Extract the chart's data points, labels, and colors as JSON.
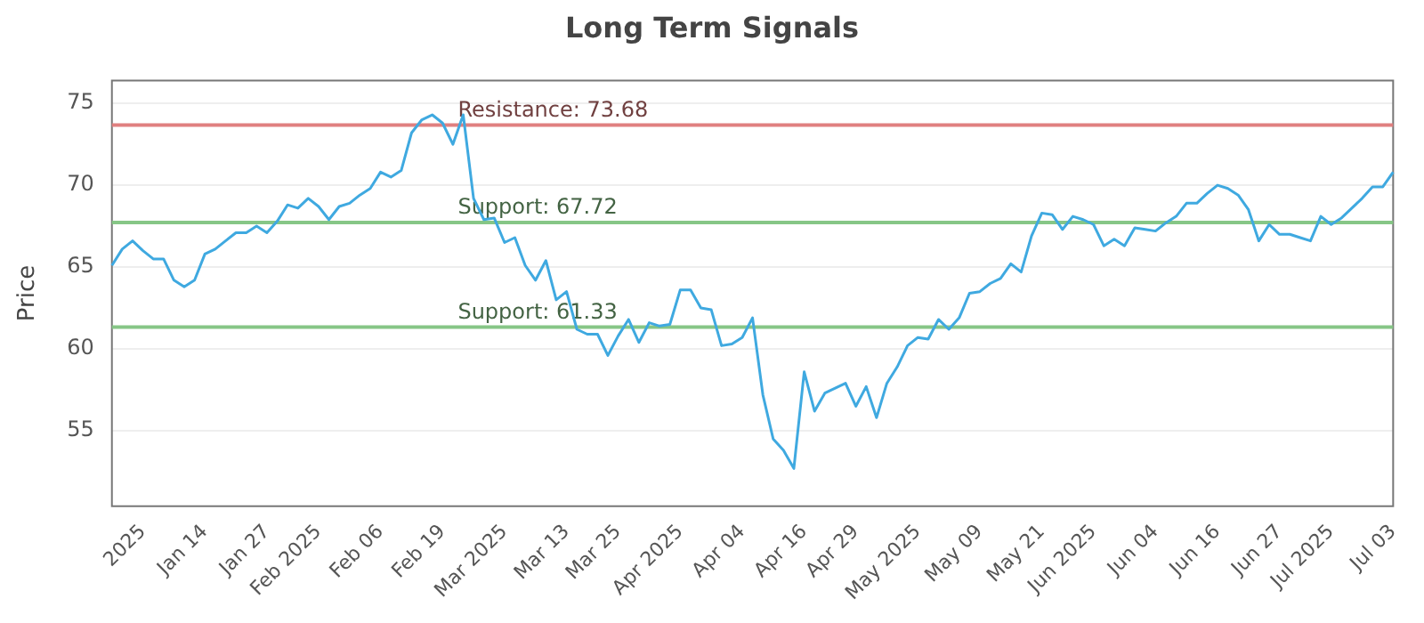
{
  "chart_data": {
    "type": "line",
    "title": "Long Term Signals",
    "ylabel": "Price",
    "categories": [
      null,
      null,
      null,
      "2025",
      null,
      null,
      null,
      null,
      null,
      "Jan 14",
      null,
      null,
      null,
      null,
      null,
      "Jan 27",
      null,
      null,
      null,
      null,
      "Feb 2025",
      null,
      null,
      null,
      null,
      null,
      "Feb 06",
      null,
      null,
      null,
      null,
      null,
      "Feb 19",
      null,
      null,
      null,
      null,
      null,
      "Mar 2025",
      null,
      null,
      null,
      null,
      null,
      "Mar 13",
      null,
      null,
      null,
      null,
      "Mar 25",
      null,
      null,
      null,
      null,
      null,
      "Apr 2025",
      null,
      null,
      null,
      null,
      null,
      "Apr 04",
      null,
      null,
      null,
      null,
      null,
      "Apr 16",
      null,
      null,
      null,
      null,
      "Apr 29",
      null,
      null,
      null,
      null,
      null,
      "May 2025",
      null,
      null,
      null,
      null,
      null,
      "May 09",
      null,
      null,
      null,
      null,
      null,
      "May 21",
      null,
      null,
      null,
      null,
      "Jun 2025",
      null,
      null,
      null,
      null,
      null,
      "Jun 04",
      null,
      null,
      null,
      null,
      null,
      "Jun 16",
      null,
      null,
      null,
      null,
      null,
      "Jun 27",
      null,
      null,
      null,
      null,
      "Jul 2025",
      null,
      null,
      null,
      null,
      null,
      "Jul 03"
    ],
    "series": [
      {
        "color": "#3fa9e0",
        "values": [
          65.1,
          66.1,
          66.6,
          66.0,
          65.5,
          65.5,
          64.2,
          63.8,
          64.2,
          65.8,
          66.1,
          66.6,
          67.1,
          67.1,
          67.5,
          67.1,
          67.8,
          68.8,
          68.6,
          69.2,
          68.7,
          67.9,
          68.7,
          68.9,
          69.4,
          69.8,
          70.8,
          70.5,
          70.9,
          73.2,
          74.0,
          74.3,
          73.8,
          72.5,
          74.3,
          69.2,
          67.9,
          68.0,
          66.5,
          66.8,
          65.1,
          64.2,
          65.4,
          63.0,
          63.5,
          61.2,
          60.9,
          60.9,
          59.6,
          60.8,
          61.8,
          60.4,
          61.6,
          61.4,
          61.5,
          63.6,
          63.6,
          62.5,
          62.4,
          60.2,
          60.3,
          60.7,
          61.9,
          57.2,
          54.5,
          53.8,
          52.7,
          58.6,
          56.2,
          57.3,
          57.6,
          57.9,
          56.5,
          57.7,
          55.8,
          57.9,
          58.9,
          60.2,
          60.7,
          60.6,
          61.8,
          61.2,
          61.9,
          63.4,
          63.5,
          64.0,
          64.3,
          65.2,
          64.7,
          66.9,
          68.3,
          68.2,
          67.3,
          68.1,
          67.9,
          67.6,
          66.3,
          66.7,
          66.3,
          67.4,
          67.3,
          67.2,
          67.7,
          68.1,
          68.9,
          68.9,
          69.5,
          70.0,
          69.8,
          69.4,
          68.5,
          66.6,
          67.6,
          67.0,
          67.0,
          66.8,
          66.6,
          68.1,
          67.6,
          68.0,
          68.6,
          69.2,
          69.9,
          69.9,
          70.8
        ]
      }
    ],
    "ylim": [
      50.4,
      76.4
    ],
    "yticks": [
      55,
      60,
      65,
      70,
      75
    ],
    "grid": "y",
    "legend": false,
    "marker": "none",
    "line_style": "solid",
    "ref_lines": [
      {
        "axis": "y",
        "value": 73.68,
        "label": "Resistance: 73.68",
        "color": "#e08080"
      },
      {
        "axis": "y",
        "value": 67.72,
        "label": "Support: 67.72",
        "color": "#86c686"
      },
      {
        "axis": "y",
        "value": 61.33,
        "label": "Support: 61.33",
        "color": "#86c686"
      }
    ]
  }
}
